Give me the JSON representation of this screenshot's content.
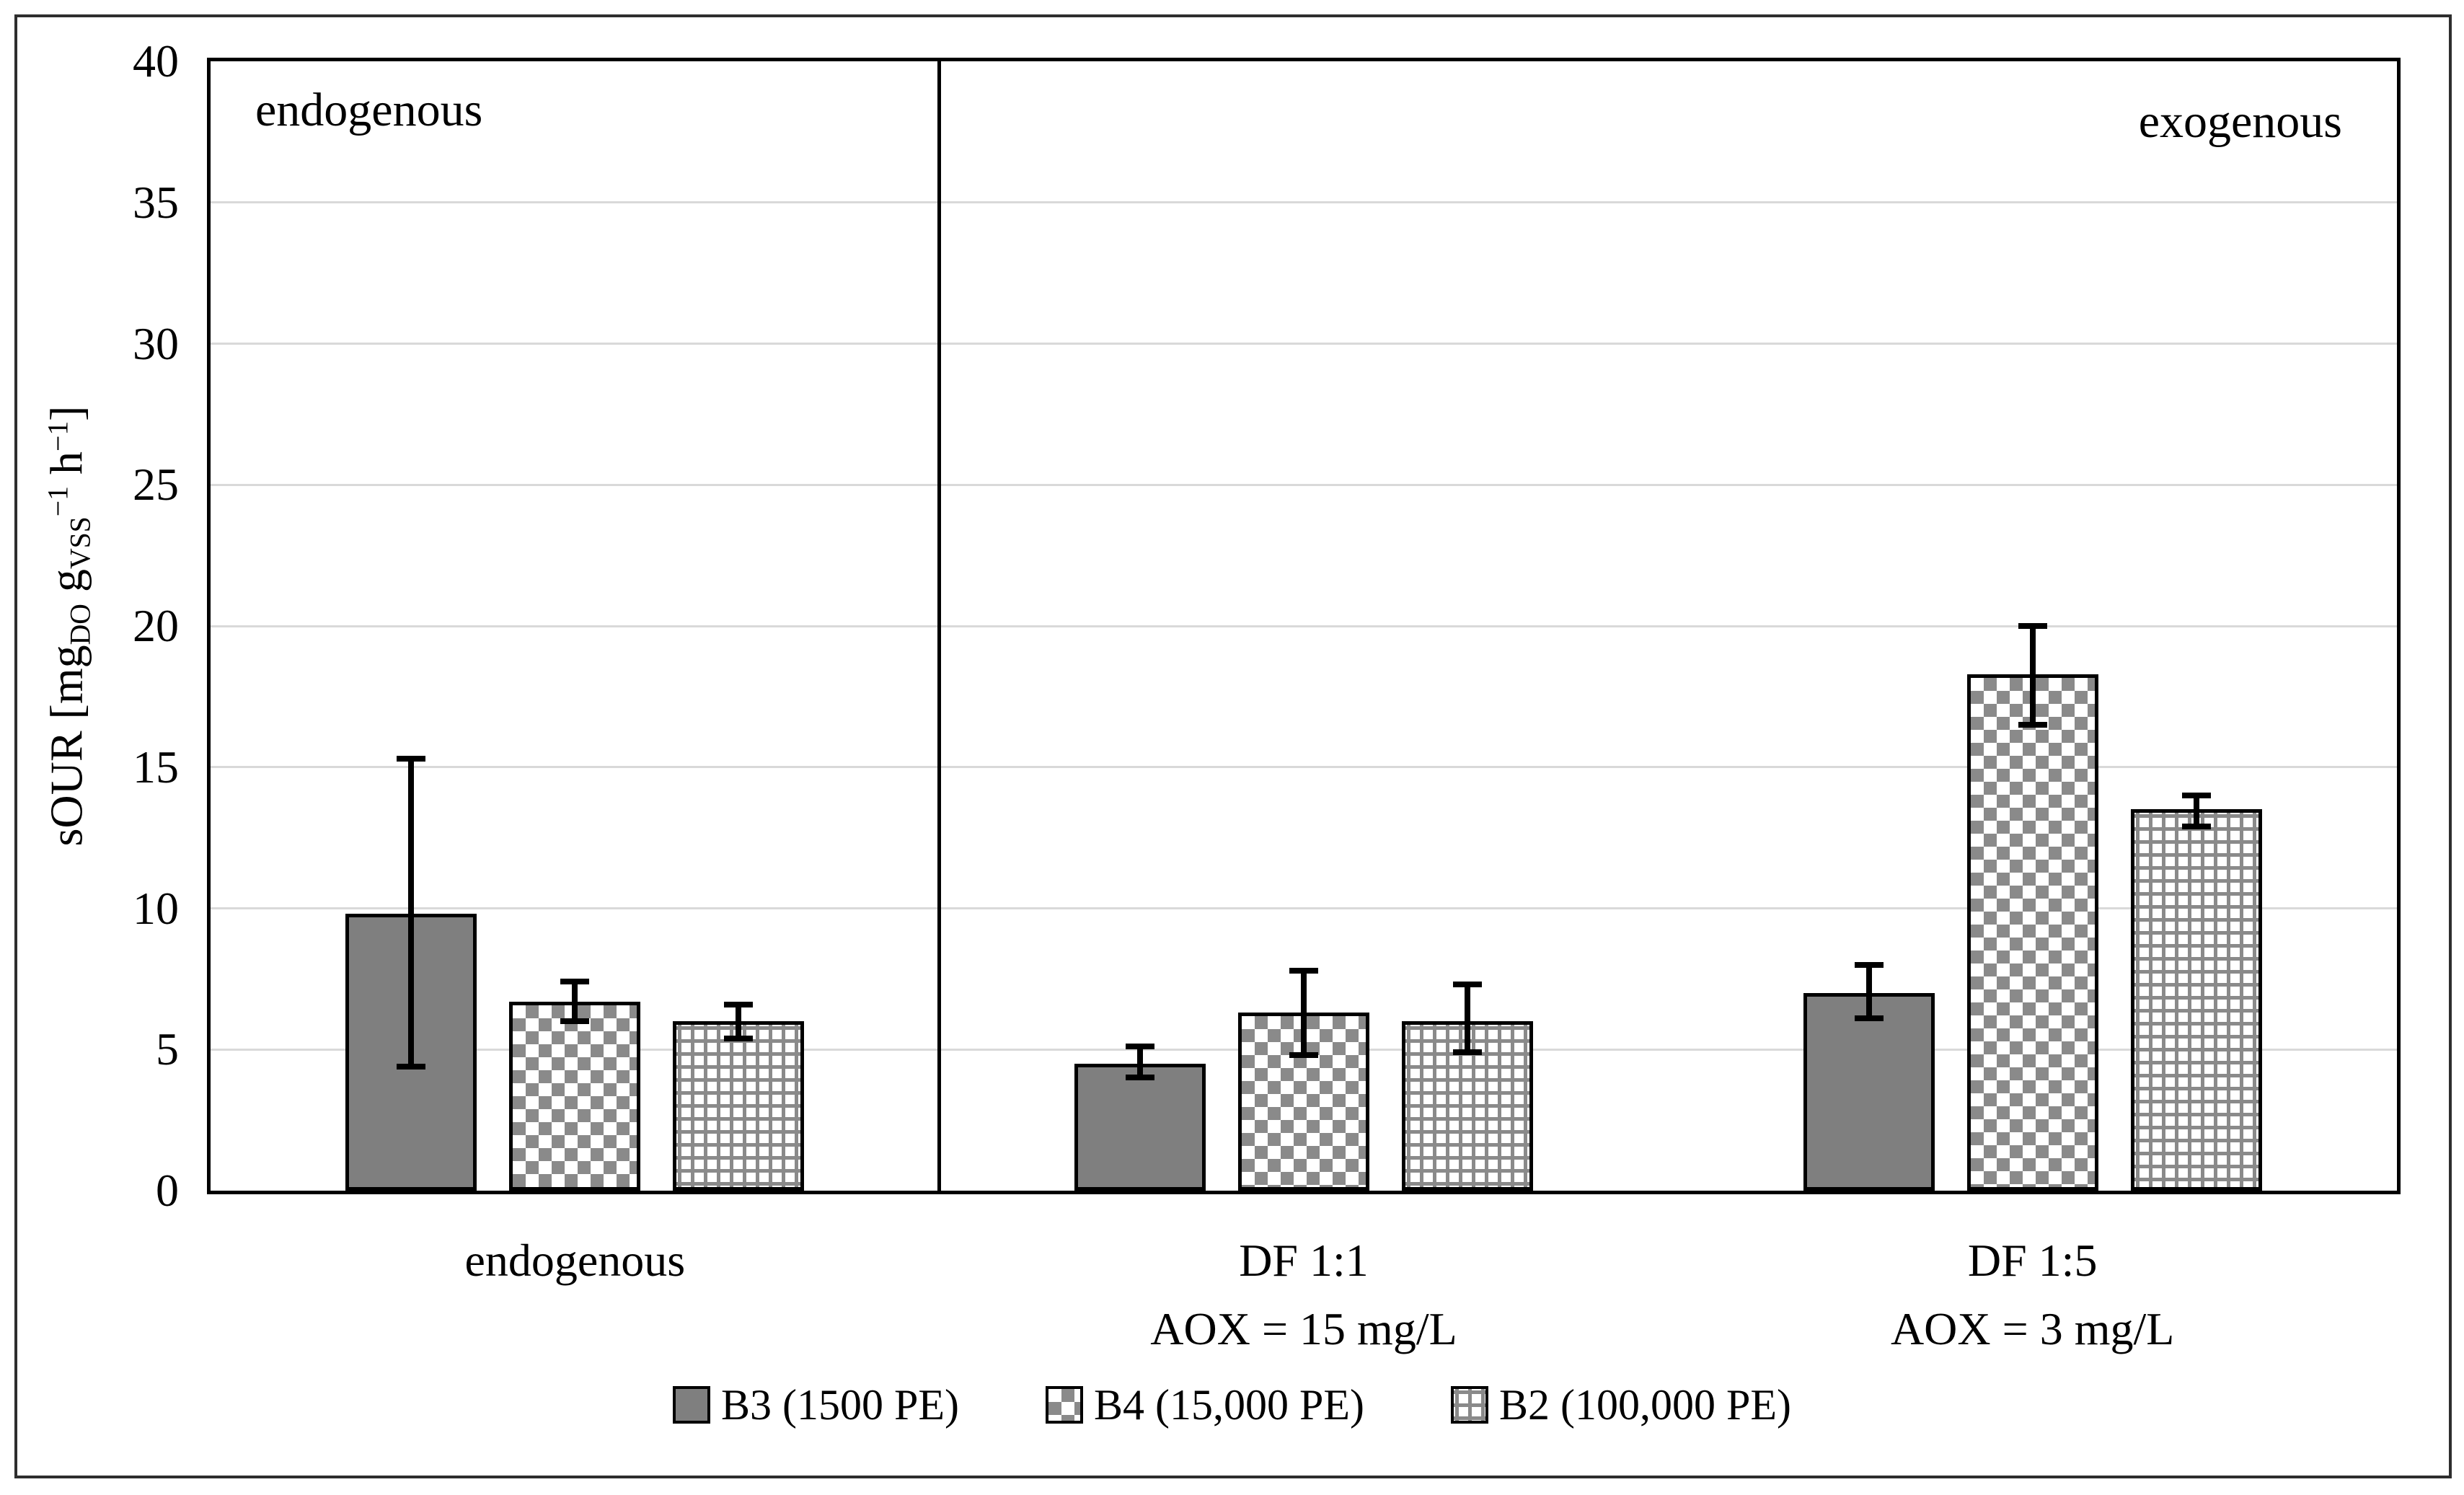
{
  "chart_data": {
    "type": "bar",
    "title": "",
    "ylabel_parts": [
      {
        "t": "sOUR [mg"
      },
      {
        "sub": "DO"
      },
      {
        "t": " g"
      },
      {
        "sub": "VSS"
      },
      {
        "sup": "−1"
      },
      {
        "t": " h"
      },
      {
        "sup": "−1"
      },
      {
        "t": "]"
      }
    ],
    "ylim": [
      0,
      40
    ],
    "ytick_step": 5,
    "yticks": [
      0,
      5,
      10,
      15,
      20,
      25,
      30,
      35,
      40
    ],
    "grid": true,
    "legend_position": "bottom",
    "categories": [
      {
        "lines": [
          "endogenous"
        ]
      },
      {
        "lines": [
          "DF 1:1",
          "AOX = 15 mg/L"
        ]
      },
      {
        "lines": [
          "DF 1:5",
          "AOX = 3 mg/L"
        ]
      }
    ],
    "series": [
      {
        "name": "B3 (1500 PE)",
        "key": "B3",
        "pattern": "solid",
        "values": [
          9.8,
          4.5,
          7.0
        ],
        "err_low": [
          4.4,
          4.0,
          6.1
        ],
        "err_high": [
          15.3,
          5.1,
          8.0
        ]
      },
      {
        "name": "B4 (15,000 PE)",
        "key": "B4",
        "pattern": "checker",
        "values": [
          6.7,
          6.3,
          18.3
        ],
        "err_low": [
          6.0,
          4.8,
          16.5
        ],
        "err_high": [
          7.4,
          7.8,
          20.0
        ]
      },
      {
        "name": "B2 (100,000 PE)",
        "key": "B2",
        "pattern": "grid",
        "values": [
          6.0,
          6.0,
          13.5
        ],
        "err_low": [
          5.4,
          4.9,
          12.9
        ],
        "err_high": [
          6.6,
          7.3,
          14.0
        ]
      }
    ],
    "annotations": [
      {
        "text": "endogenous",
        "pos": "top-left"
      },
      {
        "text": "exogenous",
        "pos": "top-right"
      }
    ],
    "divider_after_category": 0,
    "colors": {
      "bar_solid": "#7f7f7f",
      "pattern_gray": "#8a8a8a",
      "gridline": "#d9d9d9",
      "axis": "#000000"
    }
  }
}
